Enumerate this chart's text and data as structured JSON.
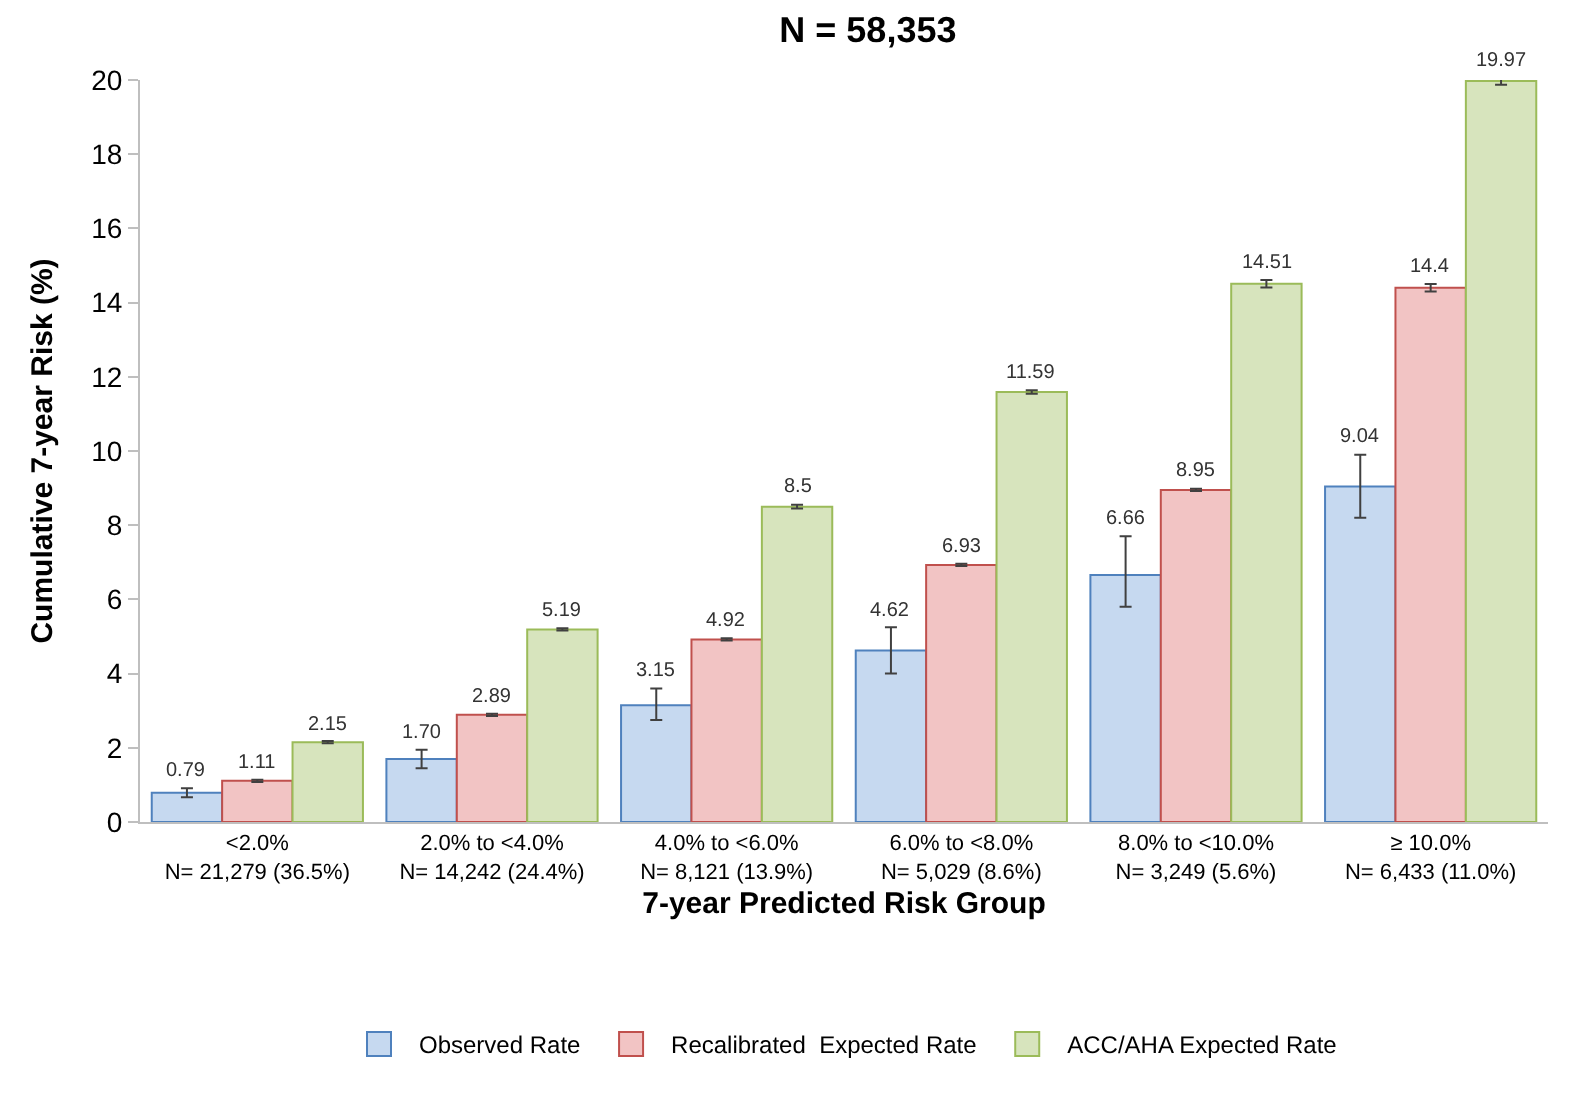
{
  "chart_data": {
    "type": "bar",
    "title": "N = 58,353",
    "xlabel": "7-year Predicted Risk Group",
    "ylabel": "Cumulative 7-year Risk (%)",
    "categories": [
      "<2.0%\nN= 21,279 (36.5%)",
      "2.0% to <4.0%\nN= 14,242 (24.4%)",
      "4.0% to <6.0%\nN= 8,121 (13.9%)",
      "6.0% to <8.0%\nN= 5,029 (8.6%)",
      "8.0% to <10.0%\nN= 3,249 (5.6%)",
      "≥ 10.0%\nN= 6,433 (11.0%)"
    ],
    "series": [
      {
        "name": "Observed Rate",
        "color": "#c6d9f0",
        "values": [
          0.79,
          1.7,
          3.15,
          4.62,
          6.66,
          9.04
        ],
        "value_labels": [
          "0.79",
          "1.70",
          "3.15",
          "4.62",
          "6.66",
          "9.04"
        ],
        "errors": [
          0.12,
          0.25,
          [
            2.75,
            3.6
          ],
          [
            4.0,
            5.25
          ],
          [
            5.8,
            7.7
          ],
          [
            8.2,
            9.9
          ]
        ]
      },
      {
        "name": "Recalibrated  Expected Rate",
        "color": "#f2c4c4",
        "values": [
          1.11,
          2.89,
          4.92,
          6.93,
          8.95,
          14.4
        ],
        "value_labels": [
          "1.11",
          "2.89",
          "4.92",
          "6.93",
          "8.95",
          "14.4"
        ],
        "errors": [
          0.03,
          0.03,
          0.03,
          0.03,
          0.03,
          0.1
        ]
      },
      {
        "name": "ACC/AHA Expected Rate",
        "color": "#d7e4bd",
        "values": [
          2.15,
          5.19,
          8.5,
          11.59,
          14.51,
          19.97
        ],
        "value_labels": [
          "2.15",
          "5.19",
          "8.5",
          "11.59",
          "14.51",
          "19.97"
        ],
        "errors": [
          0.03,
          0.03,
          0.05,
          0.05,
          0.1,
          0.1
        ]
      }
    ],
    "ylim": [
      0,
      20
    ],
    "yticks": [
      0,
      2,
      4,
      6,
      8,
      10,
      12,
      14,
      16,
      18,
      20
    ],
    "grid": false,
    "legend": "bottom"
  }
}
